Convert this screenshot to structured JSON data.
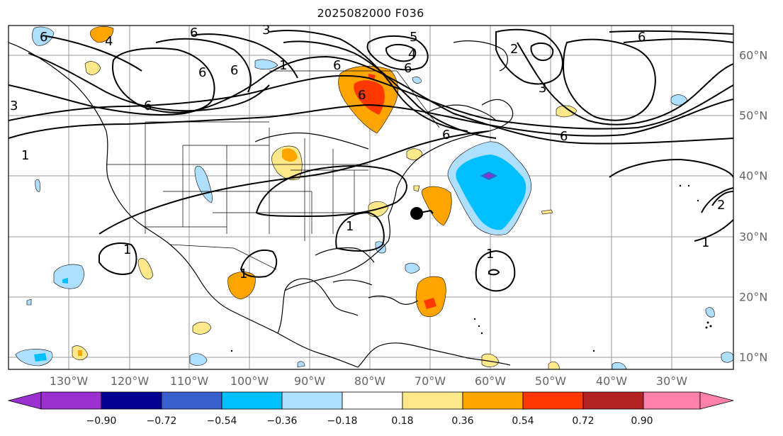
{
  "title": "2025082000 F036",
  "longitude_labels": [
    "130°W",
    "120°W",
    "110°W",
    "100°W",
    "90°W",
    "80°W",
    "70°W",
    "60°W",
    "50°W",
    "40°W",
    "30°W"
  ],
  "latitude_labels": [
    "60°N",
    "50°N",
    "40°N",
    "30°N",
    "20°N",
    "10°N"
  ],
  "colorbar": {
    "ticks": [
      "−0.90",
      "−0.72",
      "−0.54",
      "−0.36",
      "−0.18",
      "0.18",
      "0.36",
      "0.54",
      "0.72",
      "0.90"
    ],
    "colors": [
      "#9b30d0",
      "#000090",
      "#3a5fcd",
      "#00bfff",
      "#afdfff",
      "#ffffff",
      "#ffe88a",
      "#ffa500",
      "#ff3800",
      "#b22222",
      "#ff80aa"
    ]
  },
  "contour_labels": [
    "6",
    "6",
    "3",
    "6",
    "4",
    "6",
    "6",
    "5",
    "4",
    "6",
    "6",
    "6",
    "2",
    "3",
    "6",
    "3",
    "6",
    "6",
    "1",
    "1",
    "1",
    "1",
    "1",
    "1",
    "2",
    "1"
  ],
  "storm_marker": "hurricane-symbol"
}
